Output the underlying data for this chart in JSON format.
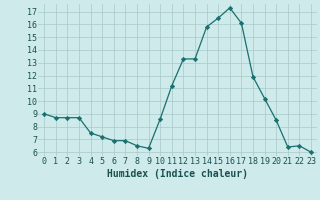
{
  "x": [
    0,
    1,
    2,
    3,
    4,
    5,
    6,
    7,
    8,
    9,
    10,
    11,
    12,
    13,
    14,
    15,
    16,
    17,
    18,
    19,
    20,
    21,
    22,
    23
  ],
  "y": [
    9,
    8.7,
    8.7,
    8.7,
    7.5,
    7.2,
    6.9,
    6.9,
    6.5,
    6.3,
    8.6,
    11.2,
    13.3,
    13.3,
    15.8,
    16.5,
    17.3,
    16.1,
    11.9,
    10.2,
    8.5,
    6.4,
    6.5,
    6.0
  ],
  "xlabel": "Humidex (Indice chaleur)",
  "xlim": [
    -0.5,
    23.5
  ],
  "ylim": [
    5.7,
    17.6
  ],
  "yticks": [
    6,
    7,
    8,
    9,
    10,
    11,
    12,
    13,
    14,
    15,
    16,
    17
  ],
  "xticks": [
    0,
    1,
    2,
    3,
    4,
    5,
    6,
    7,
    8,
    9,
    10,
    11,
    12,
    13,
    14,
    15,
    16,
    17,
    18,
    19,
    20,
    21,
    22,
    23
  ],
  "line_color": "#1a7070",
  "marker_color": "#1a7070",
  "bg_color": "#ceeaea",
  "grid_color": "#a8c8c8",
  "font_color": "#1a5050",
  "label_fontsize": 7,
  "tick_fontsize": 6
}
